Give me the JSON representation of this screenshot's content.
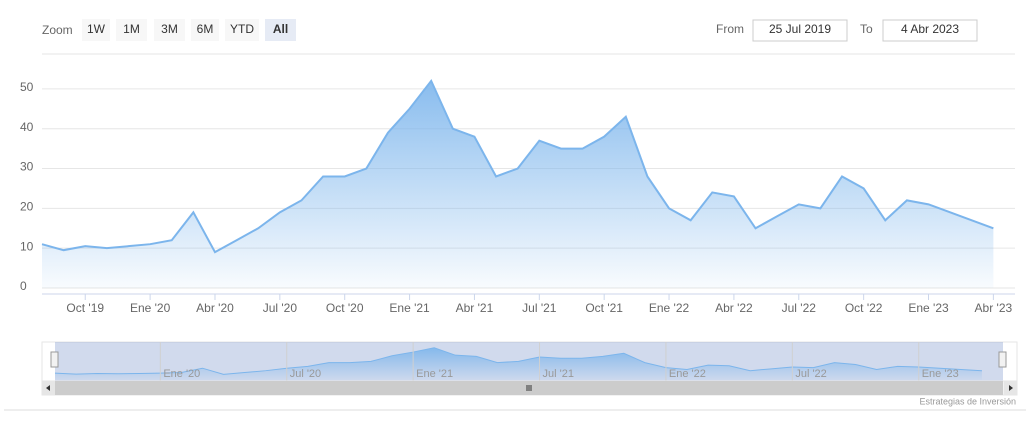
{
  "range_selector": {
    "zoom_label": "Zoom",
    "buttons": [
      "1W",
      "1M",
      "3M",
      "6M",
      "YTD",
      "All"
    ],
    "selected": 5,
    "from_label": "From",
    "from": "25 Jul 2019",
    "to_label": "To",
    "to": "4 Abr 2023"
  },
  "chart_data": {
    "type": "area",
    "color": "#7cb5ec",
    "x": [
      "2019-08",
      "2019-09",
      "2019-10",
      "2019-11",
      "2019-12",
      "2020-01",
      "2020-02",
      "2020-03",
      "2020-04",
      "2020-05",
      "2020-06",
      "2020-07",
      "2020-08",
      "2020-09",
      "2020-10",
      "2020-11",
      "2020-12",
      "2021-01",
      "2021-02",
      "2021-03",
      "2021-04",
      "2021-05",
      "2021-06",
      "2021-07",
      "2021-08",
      "2021-09",
      "2021-10",
      "2021-11",
      "2021-12",
      "2022-01",
      "2022-02",
      "2022-03",
      "2022-04",
      "2022-05",
      "2022-06",
      "2022-07",
      "2022-08",
      "2022-09",
      "2022-10",
      "2022-11",
      "2022-12",
      "2023-01",
      "2023-02",
      "2023-03",
      "2023-04"
    ],
    "values": [
      11,
      9.5,
      10.5,
      10,
      10.5,
      11,
      12,
      19,
      9,
      12,
      15,
      19,
      22,
      28,
      28,
      30,
      39,
      45,
      52,
      40,
      38,
      28,
      30,
      37,
      35,
      35,
      38,
      43,
      28,
      20,
      17,
      24,
      23,
      15,
      18,
      21,
      20,
      28,
      25,
      17,
      22,
      21,
      19,
      17,
      15
    ],
    "xlim": [
      "2019-08",
      "2023-05"
    ],
    "xticks": [
      {
        "value": "2019-10",
        "label": "Oct '19"
      },
      {
        "value": "2020-01",
        "label": "Ene '20"
      },
      {
        "value": "2020-04",
        "label": "Abr '20"
      },
      {
        "value": "2020-07",
        "label": "Jul '20"
      },
      {
        "value": "2020-10",
        "label": "Oct '20"
      },
      {
        "value": "2021-01",
        "label": "Ene '21"
      },
      {
        "value": "2021-04",
        "label": "Abr '21"
      },
      {
        "value": "2021-07",
        "label": "Jul '21"
      },
      {
        "value": "2021-10",
        "label": "Oct '21"
      },
      {
        "value": "2022-01",
        "label": "Ene '22"
      },
      {
        "value": "2022-04",
        "label": "Abr '22"
      },
      {
        "value": "2022-07",
        "label": "Jul '22"
      },
      {
        "value": "2022-10",
        "label": "Oct '22"
      },
      {
        "value": "2023-01",
        "label": "Ene '23"
      },
      {
        "value": "2023-04",
        "label": "Abr '23"
      }
    ],
    "ylim": [
      0,
      58
    ],
    "yticks": [
      0,
      10,
      20,
      30,
      40,
      50
    ],
    "grid": true,
    "navigator_xticks": [
      {
        "value": "2020-01",
        "label": "Ene '20"
      },
      {
        "value": "2020-07",
        "label": "Jul '20"
      },
      {
        "value": "2021-01",
        "label": "Ene '21"
      },
      {
        "value": "2021-07",
        "label": "Jul '21"
      },
      {
        "value": "2022-01",
        "label": "Ene '22"
      },
      {
        "value": "2022-07",
        "label": "Jul '22"
      },
      {
        "value": "2023-01",
        "label": "Ene '23"
      }
    ]
  },
  "credits": "Estrategias de Inversión"
}
